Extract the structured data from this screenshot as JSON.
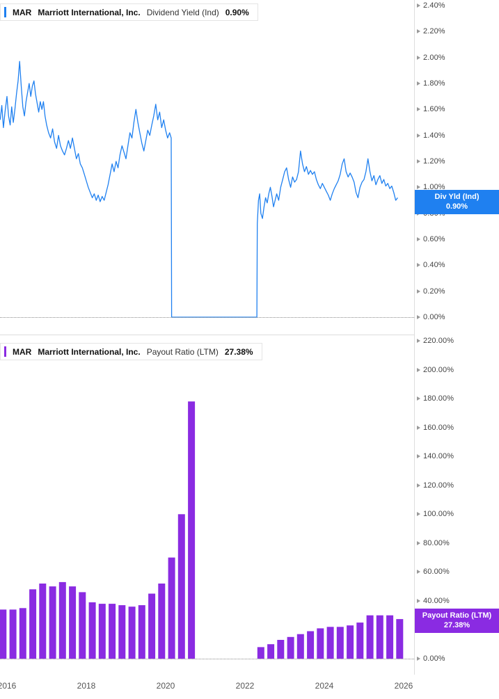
{
  "panels": [
    {
      "color": "#1f80f0",
      "legend": {
        "ticker": "MAR",
        "company": "Marriott International, Inc.",
        "metric": "Dividend Yield (Ind)",
        "value": "0.90%"
      },
      "badge": {
        "line1": "Div Yld (Ind)",
        "line2": "0.90%"
      }
    },
    {
      "color": "#8a2be2",
      "legend": {
        "ticker": "MAR",
        "company": "Marriott International, Inc.",
        "metric": "Payout Ratio (LTM)",
        "value": "27.38%"
      },
      "badge": {
        "line1": "Payout Ratio (LTM)",
        "line2": "27.38%"
      }
    }
  ],
  "x_axis": {
    "ticks": [
      2016,
      2018,
      2020,
      2022,
      2024,
      2026
    ],
    "labels": [
      "2016",
      "2018",
      "2020",
      "2022",
      "2024",
      "2026"
    ]
  },
  "chart_data": [
    {
      "type": "line",
      "title": "MAR Marriott International, Inc. Dividend Yield (Ind) 0.90%",
      "ylabel": "Dividend Yield (Indicated)",
      "unit": "%",
      "ylim": [
        0,
        2.4
      ],
      "yticks": [
        2.4,
        2.2,
        2.0,
        1.8,
        1.6,
        1.4,
        1.2,
        1.0,
        0.8,
        0.6,
        0.4,
        0.2,
        0.0
      ],
      "ytick_labels": [
        "2.40%",
        "2.20%",
        "2.00%",
        "1.80%",
        "1.60%",
        "1.40%",
        "1.20%",
        "1.00%",
        "0.80%",
        "0.60%",
        "0.40%",
        "0.20%",
        "0.00%"
      ],
      "grid": false,
      "current_value": 0.9,
      "series": [
        {
          "name": "Div Yld (Ind)",
          "points": [
            [
              2015.83,
              1.52
            ],
            [
              2015.87,
              1.63
            ],
            [
              2015.91,
              1.46
            ],
            [
              2015.95,
              1.58
            ],
            [
              2016.0,
              1.7
            ],
            [
              2016.04,
              1.55
            ],
            [
              2016.08,
              1.48
            ],
            [
              2016.12,
              1.62
            ],
            [
              2016.16,
              1.5
            ],
            [
              2016.2,
              1.6
            ],
            [
              2016.24,
              1.72
            ],
            [
              2016.28,
              1.82
            ],
            [
              2016.32,
              1.97
            ],
            [
              2016.36,
              1.78
            ],
            [
              2016.4,
              1.62
            ],
            [
              2016.44,
              1.55
            ],
            [
              2016.48,
              1.66
            ],
            [
              2016.52,
              1.73
            ],
            [
              2016.56,
              1.8
            ],
            [
              2016.6,
              1.7
            ],
            [
              2016.64,
              1.78
            ],
            [
              2016.68,
              1.82
            ],
            [
              2016.72,
              1.72
            ],
            [
              2016.76,
              1.65
            ],
            [
              2016.8,
              1.58
            ],
            [
              2016.84,
              1.66
            ],
            [
              2016.88,
              1.6
            ],
            [
              2016.92,
              1.66
            ],
            [
              2016.96,
              1.55
            ],
            [
              2017.0,
              1.48
            ],
            [
              2017.05,
              1.42
            ],
            [
              2017.1,
              1.38
            ],
            [
              2017.15,
              1.45
            ],
            [
              2017.2,
              1.35
            ],
            [
              2017.25,
              1.3
            ],
            [
              2017.3,
              1.4
            ],
            [
              2017.35,
              1.32
            ],
            [
              2017.4,
              1.28
            ],
            [
              2017.45,
              1.25
            ],
            [
              2017.5,
              1.3
            ],
            [
              2017.55,
              1.36
            ],
            [
              2017.6,
              1.3
            ],
            [
              2017.65,
              1.38
            ],
            [
              2017.7,
              1.3
            ],
            [
              2017.75,
              1.22
            ],
            [
              2017.8,
              1.26
            ],
            [
              2017.85,
              1.18
            ],
            [
              2017.9,
              1.15
            ],
            [
              2017.95,
              1.1
            ],
            [
              2018.0,
              1.05
            ],
            [
              2018.05,
              1.0
            ],
            [
              2018.1,
              0.96
            ],
            [
              2018.15,
              0.92
            ],
            [
              2018.2,
              0.95
            ],
            [
              2018.25,
              0.9
            ],
            [
              2018.3,
              0.94
            ],
            [
              2018.35,
              0.89
            ],
            [
              2018.4,
              0.93
            ],
            [
              2018.45,
              0.9
            ],
            [
              2018.5,
              0.96
            ],
            [
              2018.55,
              1.02
            ],
            [
              2018.6,
              1.1
            ],
            [
              2018.65,
              1.18
            ],
            [
              2018.7,
              1.12
            ],
            [
              2018.75,
              1.2
            ],
            [
              2018.8,
              1.15
            ],
            [
              2018.85,
              1.25
            ],
            [
              2018.9,
              1.32
            ],
            [
              2018.95,
              1.27
            ],
            [
              2019.0,
              1.22
            ],
            [
              2019.05,
              1.32
            ],
            [
              2019.1,
              1.42
            ],
            [
              2019.15,
              1.38
            ],
            [
              2019.2,
              1.5
            ],
            [
              2019.25,
              1.6
            ],
            [
              2019.3,
              1.5
            ],
            [
              2019.35,
              1.42
            ],
            [
              2019.4,
              1.34
            ],
            [
              2019.45,
              1.28
            ],
            [
              2019.5,
              1.36
            ],
            [
              2019.55,
              1.44
            ],
            [
              2019.6,
              1.4
            ],
            [
              2019.65,
              1.48
            ],
            [
              2019.7,
              1.55
            ],
            [
              2019.75,
              1.64
            ],
            [
              2019.8,
              1.52
            ],
            [
              2019.85,
              1.58
            ],
            [
              2019.9,
              1.46
            ],
            [
              2019.95,
              1.52
            ],
            [
              2020.0,
              1.44
            ],
            [
              2020.05,
              1.38
            ],
            [
              2020.1,
              1.42
            ],
            [
              2020.14,
              1.38
            ],
            [
              2020.15,
              0
            ],
            [
              2022.3,
              0
            ],
            [
              2022.31,
              0.72
            ],
            [
              2022.34,
              0.9
            ],
            [
              2022.37,
              0.95
            ],
            [
              2022.4,
              0.8
            ],
            [
              2022.44,
              0.76
            ],
            [
              2022.48,
              0.85
            ],
            [
              2022.52,
              0.92
            ],
            [
              2022.56,
              0.88
            ],
            [
              2022.6,
              0.95
            ],
            [
              2022.64,
              1.0
            ],
            [
              2022.68,
              0.93
            ],
            [
              2022.72,
              0.85
            ],
            [
              2022.76,
              0.9
            ],
            [
              2022.8,
              0.95
            ],
            [
              2022.85,
              0.9
            ],
            [
              2022.9,
              1.0
            ],
            [
              2022.95,
              1.06
            ],
            [
              2023.0,
              1.12
            ],
            [
              2023.05,
              1.15
            ],
            [
              2023.1,
              1.06
            ],
            [
              2023.15,
              1.0
            ],
            [
              2023.2,
              1.08
            ],
            [
              2023.25,
              1.04
            ],
            [
              2023.3,
              1.06
            ],
            [
              2023.35,
              1.12
            ],
            [
              2023.4,
              1.28
            ],
            [
              2023.45,
              1.18
            ],
            [
              2023.5,
              1.12
            ],
            [
              2023.55,
              1.16
            ],
            [
              2023.6,
              1.1
            ],
            [
              2023.65,
              1.13
            ],
            [
              2023.7,
              1.1
            ],
            [
              2023.75,
              1.12
            ],
            [
              2023.8,
              1.06
            ],
            [
              2023.85,
              1.02
            ],
            [
              2023.9,
              0.99
            ],
            [
              2023.95,
              1.03
            ],
            [
              2024.0,
              1.0
            ],
            [
              2024.05,
              0.97
            ],
            [
              2024.1,
              0.94
            ],
            [
              2024.15,
              0.9
            ],
            [
              2024.2,
              0.95
            ],
            [
              2024.25,
              0.99
            ],
            [
              2024.3,
              1.02
            ],
            [
              2024.35,
              1.05
            ],
            [
              2024.4,
              1.1
            ],
            [
              2024.45,
              1.18
            ],
            [
              2024.5,
              1.22
            ],
            [
              2024.55,
              1.12
            ],
            [
              2024.6,
              1.08
            ],
            [
              2024.65,
              1.11
            ],
            [
              2024.7,
              1.08
            ],
            [
              2024.75,
              1.04
            ],
            [
              2024.8,
              0.96
            ],
            [
              2024.85,
              0.92
            ],
            [
              2024.9,
              1.0
            ],
            [
              2024.95,
              1.04
            ],
            [
              2025.0,
              1.06
            ],
            [
              2025.05,
              1.12
            ],
            [
              2025.1,
              1.22
            ],
            [
              2025.15,
              1.12
            ],
            [
              2025.2,
              1.05
            ],
            [
              2025.25,
              1.09
            ],
            [
              2025.3,
              1.02
            ],
            [
              2025.35,
              1.06
            ],
            [
              2025.4,
              1.09
            ],
            [
              2025.45,
              1.03
            ],
            [
              2025.5,
              1.06
            ],
            [
              2025.55,
              1.01
            ],
            [
              2025.6,
              1.03
            ],
            [
              2025.65,
              0.99
            ],
            [
              2025.7,
              1.01
            ],
            [
              2025.75,
              0.96
            ],
            [
              2025.8,
              0.9
            ],
            [
              2025.85,
              0.92
            ]
          ]
        }
      ]
    },
    {
      "type": "bar",
      "title": "MAR Marriott International, Inc. Payout Ratio (LTM) 27.38%",
      "ylabel": "Payout Ratio (LTM)",
      "unit": "%",
      "ylim": [
        0,
        220
      ],
      "yticks": [
        220,
        200,
        180,
        160,
        140,
        120,
        100,
        80,
        60,
        40,
        20,
        0
      ],
      "ytick_labels": [
        "220.00%",
        "200.00%",
        "180.00%",
        "160.00%",
        "140.00%",
        "120.00%",
        "100.00%",
        "80.00%",
        "60.00%",
        "40.00%",
        "20.00%",
        "0.00%"
      ],
      "grid": false,
      "current_value": 27.38,
      "series": [
        {
          "name": "Payout Ratio (LTM)",
          "points": [
            [
              2015.9,
              34
            ],
            [
              2016.15,
              34
            ],
            [
              2016.4,
              35
            ],
            [
              2016.65,
              48
            ],
            [
              2016.9,
              52
            ],
            [
              2017.15,
              50
            ],
            [
              2017.4,
              53
            ],
            [
              2017.65,
              50
            ],
            [
              2017.9,
              46
            ],
            [
              2018.15,
              39
            ],
            [
              2018.4,
              38
            ],
            [
              2018.65,
              38
            ],
            [
              2018.9,
              37
            ],
            [
              2019.15,
              36
            ],
            [
              2019.4,
              37
            ],
            [
              2019.65,
              45
            ],
            [
              2019.9,
              52
            ],
            [
              2020.15,
              70
            ],
            [
              2020.4,
              100
            ],
            [
              2020.65,
              178
            ],
            [
              2022.4,
              8
            ],
            [
              2022.65,
              10
            ],
            [
              2022.9,
              13
            ],
            [
              2023.15,
              15
            ],
            [
              2023.4,
              17
            ],
            [
              2023.65,
              19
            ],
            [
              2023.9,
              21
            ],
            [
              2024.15,
              22
            ],
            [
              2024.4,
              22
            ],
            [
              2024.65,
              23
            ],
            [
              2024.9,
              25
            ],
            [
              2025.15,
              30
            ],
            [
              2025.4,
              30
            ],
            [
              2025.65,
              30
            ],
            [
              2025.9,
              27.38
            ]
          ]
        }
      ]
    }
  ]
}
